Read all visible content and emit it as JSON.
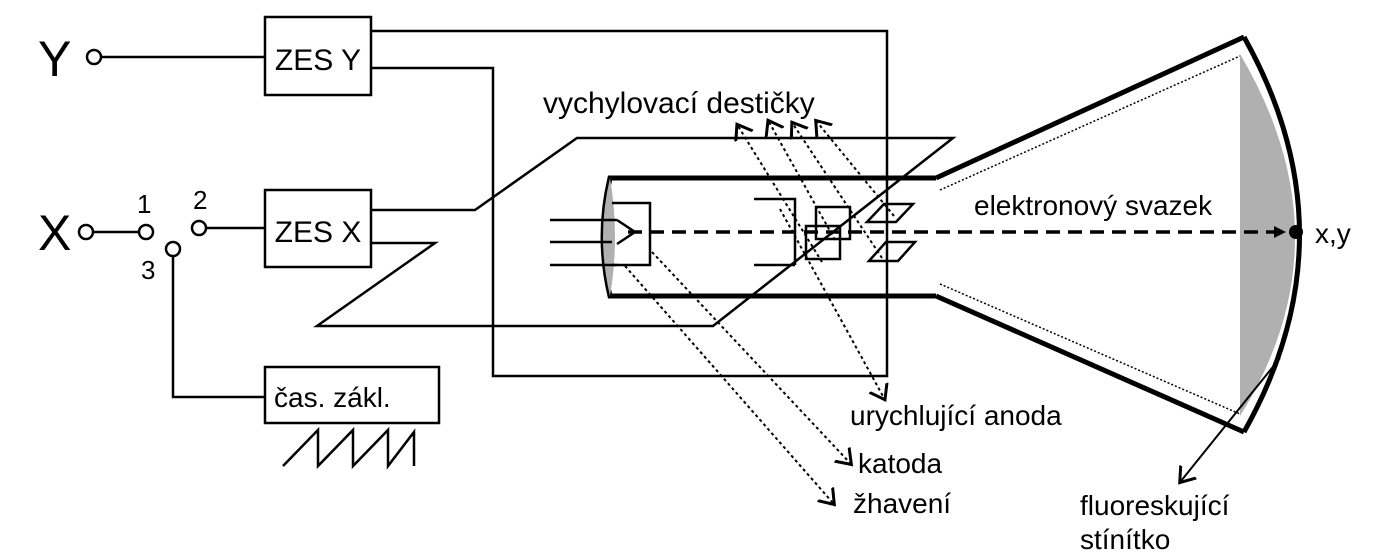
{
  "labels": {
    "y_input": "Y",
    "x_input": "X",
    "switch_pos1": "1",
    "switch_pos2": "2",
    "switch_pos3": "3",
    "amp_y": "ZES Y",
    "amp_x": "ZES X",
    "timebase": "čas. zákl.",
    "deflection_plates": "vychylovací destičky",
    "electron_beam": "elektronový svazek",
    "screen_point": "x,y",
    "anode": "urychlující anoda",
    "cathode": "katoda",
    "heater": "žhavení",
    "screen_line1": "fluoreskující",
    "screen_line2": "stínítko"
  },
  "colors": {
    "line": "#000000",
    "screen_fill": "#b0b0b0",
    "background": "#ffffff"
  }
}
